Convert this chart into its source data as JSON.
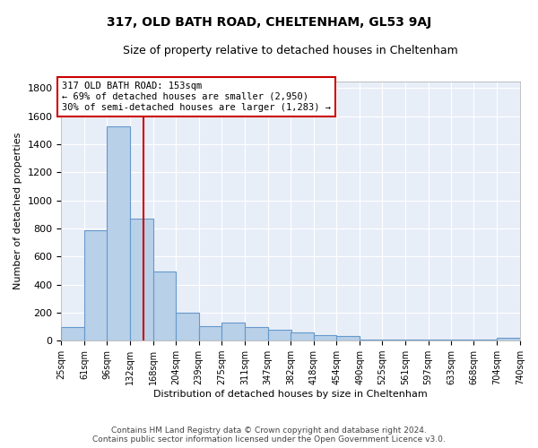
{
  "title": "317, OLD BATH ROAD, CHELTENHAM, GL53 9AJ",
  "subtitle": "Size of property relative to detached houses in Cheltenham",
  "xlabel": "Distribution of detached houses by size in Cheltenham",
  "ylabel": "Number of detached properties",
  "footer_line1": "Contains HM Land Registry data © Crown copyright and database right 2024.",
  "footer_line2": "Contains public sector information licensed under the Open Government Licence v3.0.",
  "annotation_line1": "317 OLD BATH ROAD: 153sqm",
  "annotation_line2": "← 69% of detached houses are smaller (2,950)",
  "annotation_line3": "30% of semi-detached houses are larger (1,283) →",
  "property_size": 153,
  "bar_color": "#b8d0e8",
  "bar_edge_color": "#6699cc",
  "red_line_color": "#cc0000",
  "plot_bg_color": "#e8eef8",
  "grid_color": "#ffffff",
  "bins": [
    25,
    61,
    96,
    132,
    168,
    204,
    239,
    275,
    311,
    347,
    382,
    418,
    454,
    490,
    525,
    561,
    597,
    633,
    668,
    704,
    740
  ],
  "counts": [
    100,
    790,
    1530,
    870,
    490,
    200,
    105,
    130,
    100,
    75,
    60,
    40,
    35,
    5,
    5,
    5,
    5,
    5,
    5,
    20
  ],
  "ylim": [
    0,
    1850
  ],
  "yticks": [
    0,
    200,
    400,
    600,
    800,
    1000,
    1200,
    1400,
    1600,
    1800
  ]
}
